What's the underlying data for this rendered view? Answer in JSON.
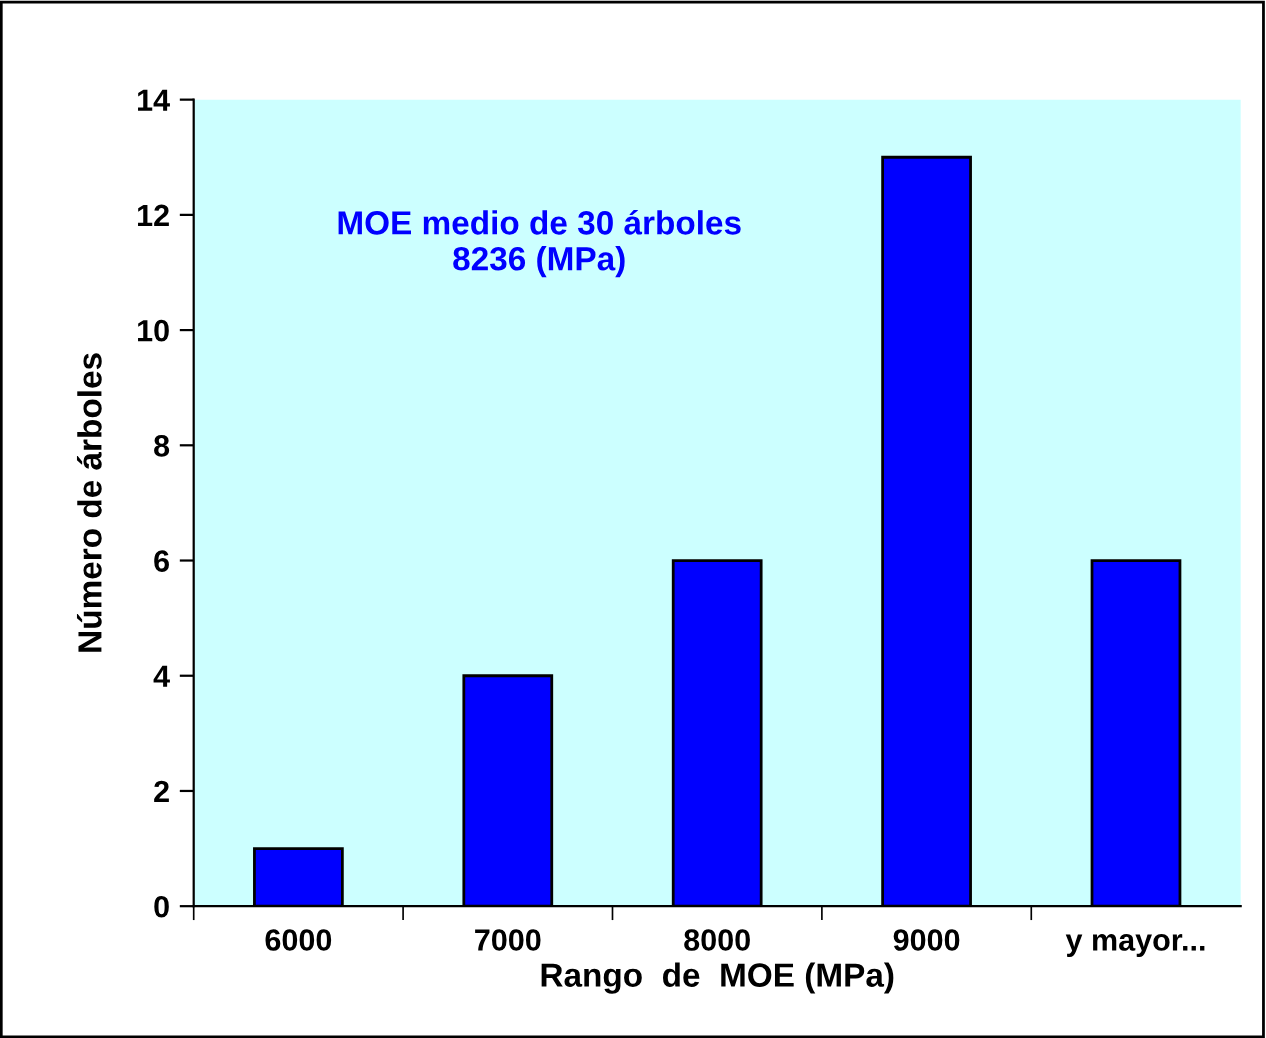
{
  "chart_data": {
    "type": "bar",
    "categories": [
      "6000",
      "7000",
      "8000",
      "9000",
      "y mayor..."
    ],
    "values": [
      1,
      4,
      6,
      13,
      6
    ],
    "color": "#0000ff",
    "xlabel": "Rango  de  MOE (MPa)",
    "ylabel": "Número de árboles",
    "ylim": [
      0,
      14
    ],
    "yticks": [
      0,
      2,
      4,
      6,
      8,
      10,
      12,
      14
    ],
    "annotations": [
      "MOE medio de 30 árboles\n8236 (MPa)"
    ],
    "grid": false,
    "legend": false
  }
}
